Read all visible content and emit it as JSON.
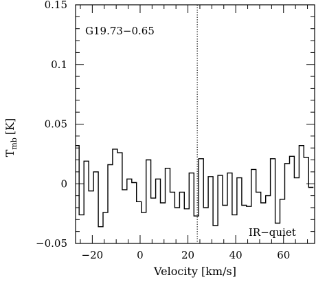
{
  "chart_data": {
    "type": "line",
    "step": true,
    "xlabel": "Velocity [km/s]",
    "ylabel_main": "T",
    "ylabel_sub": "mb",
    "ylabel_unit": "[K]",
    "xlim": [
      -27,
      73
    ],
    "ylim": [
      -0.05,
      0.15
    ],
    "xticks": [
      -20,
      0,
      20,
      40,
      60
    ],
    "yticks": [
      -0.05,
      0,
      0.05,
      0.1,
      0.15
    ],
    "ytick_labels": [
      "−0.05",
      "0",
      "0.05",
      "0.1",
      "0.15"
    ],
    "xtick_labels": [
      "−20",
      "0",
      "20",
      "40",
      "60"
    ],
    "source_label": "G19.73−0.65",
    "class_label": "IR−quiet",
    "vline_x": 23.9,
    "series": [
      {
        "x": [
          -26.5,
          -24.5,
          -22.5,
          -20.5,
          -18.5,
          -16.5,
          -14.5,
          -12.5,
          -10.5,
          -8.5,
          -6.5,
          -4.5,
          -2.5,
          -0.5,
          1.5,
          3.5,
          5.5,
          7.5,
          9.5,
          11.5,
          13.5,
          15.5,
          17.5,
          19.5,
          21.5,
          23.5,
          25.5,
          27.5,
          29.5,
          31.5,
          33.5,
          35.5,
          37.5,
          39.5,
          41.5,
          43.5,
          45.5,
          47.5,
          49.5,
          51.5,
          53.5,
          55.5,
          57.5,
          59.5,
          61.5,
          63.5,
          65.5,
          67.5,
          69.5,
          71.5
        ],
        "y": [
          0.032,
          -0.026,
          0.019,
          -0.006,
          0.01,
          -0.036,
          -0.024,
          0.016,
          0.029,
          0.026,
          -0.005,
          0.004,
          0.001,
          -0.015,
          -0.024,
          0.02,
          -0.012,
          0.004,
          -0.016,
          0.013,
          -0.007,
          -0.02,
          -0.007,
          -0.021,
          0.009,
          -0.027,
          0.021,
          -0.02,
          0.006,
          -0.035,
          0.007,
          -0.018,
          0.009,
          -0.026,
          0.005,
          -0.018,
          -0.019,
          0.012,
          -0.007,
          -0.016,
          -0.01,
          0.021,
          -0.033,
          -0.013,
          0.017,
          0.023,
          0.005,
          0.032,
          0.022,
          -0.003
        ]
      }
    ]
  }
}
